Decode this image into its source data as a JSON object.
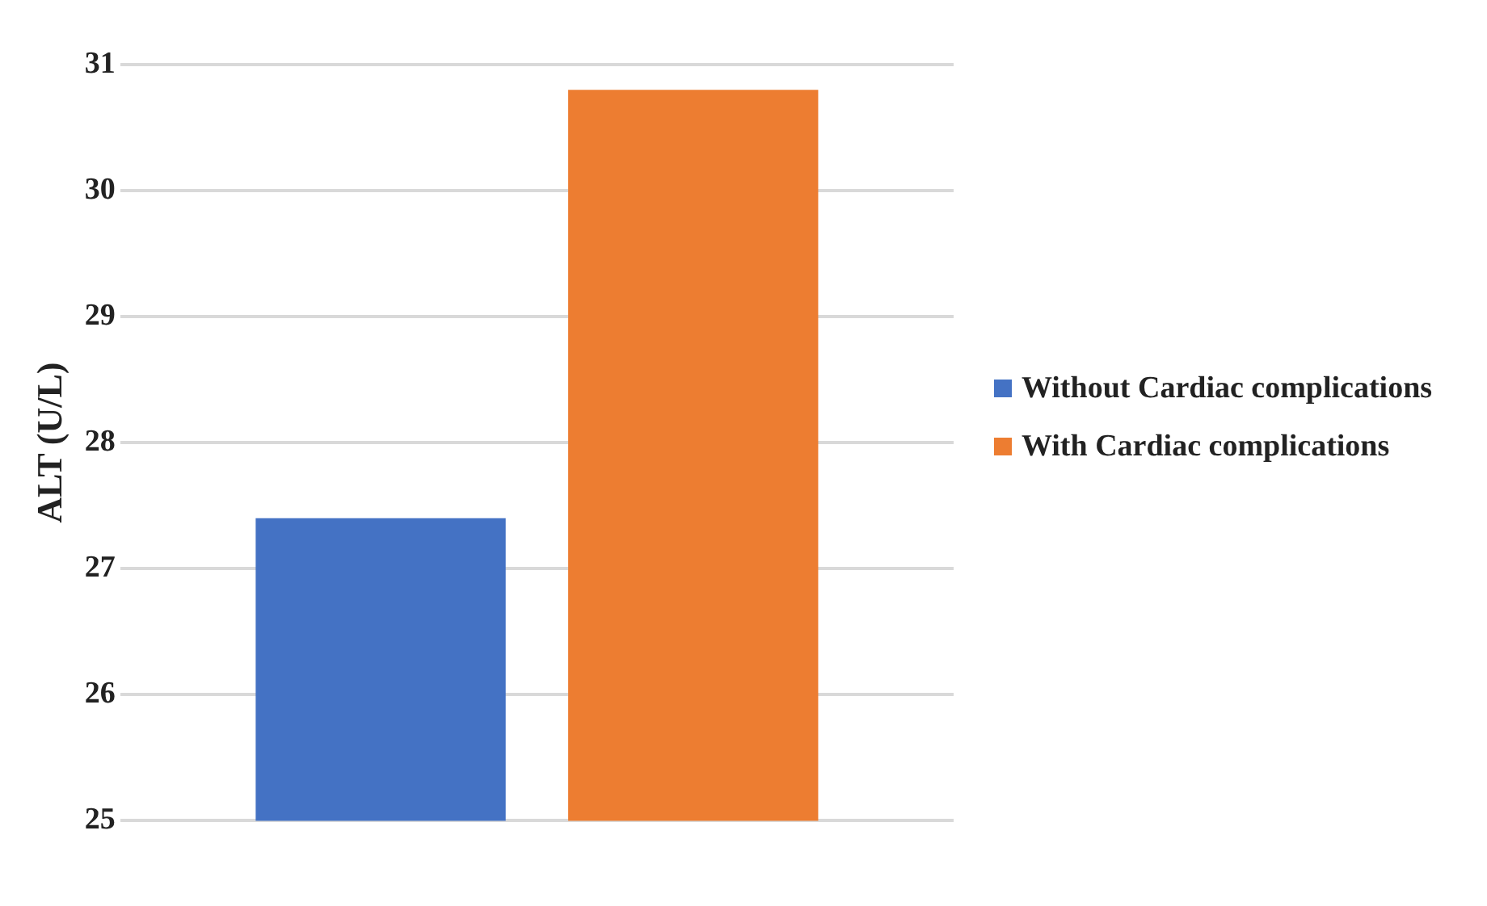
{
  "chart_data": {
    "type": "bar",
    "ylabel": "ALT (U/L)",
    "categories": [
      null
    ],
    "series": [
      {
        "name": "Without Cardiac complications",
        "color": "#4472c4",
        "values": [
          27.4
        ]
      },
      {
        "name": "With Cardiac complications",
        "color": "#ed7d31",
        "values": [
          30.8
        ]
      }
    ],
    "ylim": [
      25,
      31
    ],
    "yticks": [
      25,
      26,
      27,
      28,
      29,
      30,
      31
    ],
    "grid": "y",
    "legend": "right"
  }
}
